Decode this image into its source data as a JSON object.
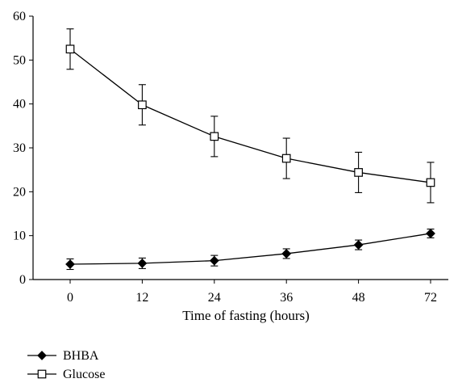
{
  "chart_data": {
    "type": "line",
    "xlabel": "Time of fasting (hours)",
    "ylabel": "",
    "x": [
      0,
      12,
      24,
      36,
      48,
      72
    ],
    "x_tick_labels": [
      "0",
      "12",
      "24",
      "36",
      "48",
      "72"
    ],
    "ylim": [
      0,
      60
    ],
    "y_ticks": [
      0,
      10,
      20,
      30,
      40,
      50,
      60
    ],
    "y_tick_labels": [
      "0",
      "10",
      "20",
      "30",
      "40",
      "50",
      "60"
    ],
    "grid": false,
    "legend_position": "bottom-left",
    "series": [
      {
        "name": "BHBA",
        "marker": "filled-diamond",
        "color": "#000000",
        "values": [
          3.5,
          3.7,
          4.3,
          5.9,
          7.9,
          10.5
        ],
        "error": [
          1.2,
          1.2,
          1.2,
          1.1,
          1.1,
          1.0
        ]
      },
      {
        "name": "Glucose",
        "marker": "open-square",
        "color": "#000000",
        "values": [
          52.5,
          39.8,
          32.6,
          27.6,
          24.4,
          22.1
        ],
        "error": [
          4.6,
          4.6,
          4.6,
          4.6,
          4.6,
          4.6
        ]
      }
    ]
  }
}
